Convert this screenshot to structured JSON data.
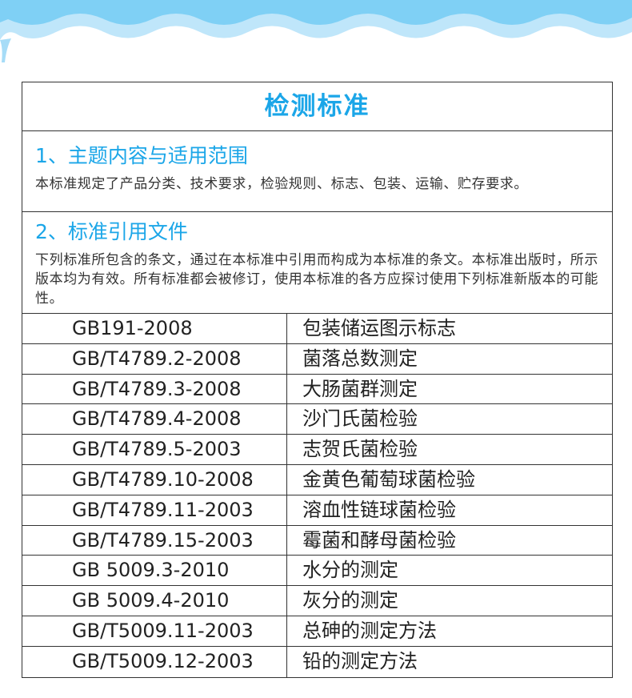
{
  "title": "检测标准",
  "sections": [
    {
      "heading": "1、主题内容与适用范围",
      "text": "本标准规定了产品分类、技术要求，检验规则、标志、包装、运输、贮存要求。"
    },
    {
      "heading": "2、标准引用文件",
      "text": "下列标准所包含的条文，通过在本标准中引用而构成为本标准的条文。本标准出版时，所示版本均为有效。所有标准都会被修订，使用本标准的各方应探讨使用下列标准新版本的可能性。"
    }
  ],
  "table": {
    "rows": [
      [
        "GB191-2008",
        "包装储运图示标志"
      ],
      [
        "GB/T4789.2-2008",
        "菌落总数测定"
      ],
      [
        "GB/T4789.3-2008",
        "大肠菌群测定"
      ],
      [
        "GB/T4789.4-2008",
        "沙门氏菌检验"
      ],
      [
        "GB/T4789.5-2003",
        "志贺氏菌检验"
      ],
      [
        "GB/T4789.10-2008",
        "金黄色葡萄球菌检验"
      ],
      [
        "GB/T4789.11-2003",
        "溶血性链球菌检验"
      ],
      [
        "GB/T4789.15-2003",
        "霉菌和酵母菌检验"
      ],
      [
        "GB 5009.3-2010",
        "水分的测定"
      ],
      [
        "GB 5009.4-2010",
        "灰分的测定"
      ],
      [
        "GB/T5009.11-2003",
        "总砷的测定方法"
      ],
      [
        "GB/T5009.12-2003",
        "铅的测定方法"
      ]
    ]
  }
}
